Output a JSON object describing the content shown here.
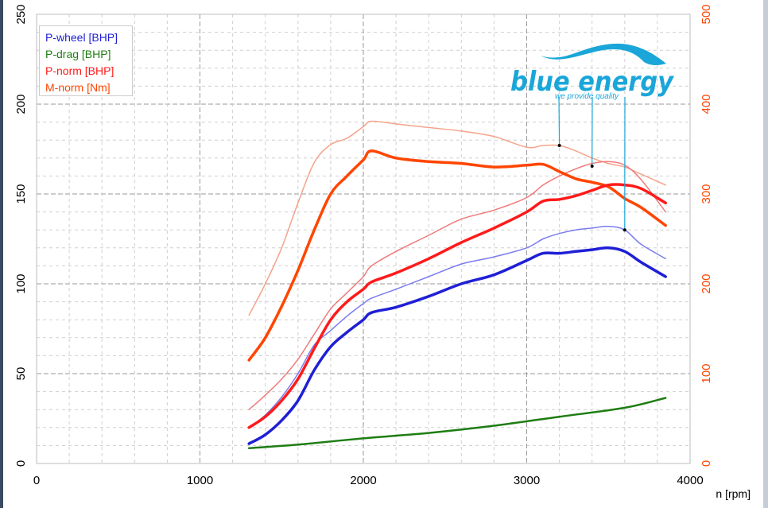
{
  "chart_data": {
    "type": "line",
    "xlabel": "n [rpm]",
    "xlim": [
      0,
      4000
    ],
    "xticks": [
      "0",
      "1000",
      "2000",
      "3000",
      "4000"
    ],
    "ylim_left": [
      0,
      250
    ],
    "yticks_left": [
      "0",
      "50",
      "100",
      "150",
      "200",
      "250"
    ],
    "ylim_right": [
      0,
      500
    ],
    "yticks_right": [
      "0",
      "100",
      "200",
      "300",
      "400",
      "500"
    ],
    "grid": true,
    "legend_placement": "top-left",
    "series": [
      {
        "name": "P-wheel [BHP]",
        "axis": "left",
        "color": "#1f1fd6",
        "width": 3.5,
        "points": [
          [
            1300,
            11
          ],
          [
            1400,
            16
          ],
          [
            1500,
            24
          ],
          [
            1600,
            35
          ],
          [
            1700,
            52
          ],
          [
            1800,
            65
          ],
          [
            1900,
            73
          ],
          [
            2000,
            80
          ],
          [
            2050,
            84
          ],
          [
            2200,
            87
          ],
          [
            2400,
            93
          ],
          [
            2600,
            100
          ],
          [
            2800,
            105
          ],
          [
            3000,
            113
          ],
          [
            3100,
            117
          ],
          [
            3200,
            117
          ],
          [
            3300,
            118
          ],
          [
            3400,
            119
          ],
          [
            3500,
            120
          ],
          [
            3600,
            118
          ],
          [
            3700,
            112
          ],
          [
            3850,
            104
          ]
        ]
      },
      {
        "name": "P-drag [BHP]",
        "axis": "left",
        "color": "#1e7d12",
        "width": 2.5,
        "points": [
          [
            1300,
            8.5
          ],
          [
            1600,
            10.5
          ],
          [
            2000,
            14
          ],
          [
            2400,
            17
          ],
          [
            2800,
            21
          ],
          [
            3200,
            26
          ],
          [
            3600,
            31
          ],
          [
            3850,
            36.5
          ]
        ]
      },
      {
        "name": "P-norm [BHP]",
        "axis": "left",
        "color": "#ff1a1a",
        "width": 3.5,
        "points": [
          [
            1300,
            20
          ],
          [
            1400,
            26
          ],
          [
            1500,
            35
          ],
          [
            1600,
            47
          ],
          [
            1700,
            64
          ],
          [
            1800,
            80
          ],
          [
            1900,
            90
          ],
          [
            2000,
            97
          ],
          [
            2050,
            101
          ],
          [
            2200,
            106
          ],
          [
            2400,
            114
          ],
          [
            2600,
            123
          ],
          [
            2800,
            131
          ],
          [
            3000,
            140
          ],
          [
            3100,
            146
          ],
          [
            3200,
            147
          ],
          [
            3300,
            149
          ],
          [
            3400,
            152
          ],
          [
            3500,
            155
          ],
          [
            3600,
            155
          ],
          [
            3700,
            153
          ],
          [
            3850,
            145
          ]
        ]
      },
      {
        "name": "M-norm [Nm]",
        "axis": "right",
        "color": "#ff4500",
        "width": 3.5,
        "points": [
          [
            1300,
            115
          ],
          [
            1400,
            140
          ],
          [
            1500,
            175
          ],
          [
            1600,
            215
          ],
          [
            1700,
            260
          ],
          [
            1800,
            300
          ],
          [
            1900,
            320
          ],
          [
            2000,
            338
          ],
          [
            2050,
            348
          ],
          [
            2200,
            340
          ],
          [
            2400,
            336
          ],
          [
            2600,
            334
          ],
          [
            2800,
            330
          ],
          [
            3000,
            332
          ],
          [
            3100,
            333
          ],
          [
            3200,
            325
          ],
          [
            3300,
            317
          ],
          [
            3400,
            313
          ],
          [
            3500,
            308
          ],
          [
            3600,
            295
          ],
          [
            3700,
            285
          ],
          [
            3850,
            265
          ]
        ]
      },
      {
        "name": "",
        "axis": "left",
        "color": "#7c7cf0",
        "width": 1.5,
        "points": [
          [
            1300,
            20
          ],
          [
            1400,
            27
          ],
          [
            1500,
            37
          ],
          [
            1600,
            50
          ],
          [
            1700,
            66
          ],
          [
            1800,
            74
          ],
          [
            1900,
            82
          ],
          [
            2000,
            89
          ],
          [
            2050,
            92
          ],
          [
            2200,
            97
          ],
          [
            2400,
            104
          ],
          [
            2600,
            111
          ],
          [
            2800,
            115
          ],
          [
            3000,
            120
          ],
          [
            3100,
            125
          ],
          [
            3200,
            128
          ],
          [
            3300,
            130
          ],
          [
            3400,
            131
          ],
          [
            3500,
            132
          ],
          [
            3600,
            130
          ],
          [
            3700,
            122
          ],
          [
            3850,
            114
          ]
        ]
      },
      {
        "name": "",
        "axis": "left",
        "color": "#f07a7a",
        "width": 1.5,
        "points": [
          [
            1300,
            30
          ],
          [
            1400,
            38
          ],
          [
            1500,
            47
          ],
          [
            1600,
            58
          ],
          [
            1700,
            72
          ],
          [
            1800,
            86
          ],
          [
            1900,
            95
          ],
          [
            2000,
            104
          ],
          [
            2050,
            110
          ],
          [
            2200,
            118
          ],
          [
            2400,
            127
          ],
          [
            2600,
            136
          ],
          [
            2800,
            141
          ],
          [
            3000,
            148
          ],
          [
            3100,
            155
          ],
          [
            3200,
            160
          ],
          [
            3300,
            164
          ],
          [
            3400,
            167
          ],
          [
            3500,
            168
          ],
          [
            3600,
            166
          ],
          [
            3700,
            158
          ],
          [
            3850,
            140
          ]
        ]
      },
      {
        "name": "",
        "axis": "right",
        "color": "#f5a38a",
        "width": 1.5,
        "points": [
          [
            1300,
            165
          ],
          [
            1400,
            200
          ],
          [
            1500,
            240
          ],
          [
            1600,
            290
          ],
          [
            1700,
            335
          ],
          [
            1800,
            355
          ],
          [
            1900,
            362
          ],
          [
            2000,
            375
          ],
          [
            2050,
            381
          ],
          [
            2200,
            378
          ],
          [
            2400,
            374
          ],
          [
            2600,
            370
          ],
          [
            2800,
            364
          ],
          [
            3000,
            352
          ],
          [
            3100,
            354
          ],
          [
            3200,
            354
          ],
          [
            3300,
            348
          ],
          [
            3400,
            340
          ],
          [
            3500,
            334
          ],
          [
            3600,
            330
          ],
          [
            3700,
            322
          ],
          [
            3850,
            310
          ]
        ]
      }
    ],
    "annotations": [
      {
        "axis": "right",
        "x": 3200,
        "y": 354
      },
      {
        "axis": "right",
        "x": 3400,
        "y": 331
      },
      {
        "axis": "left",
        "x": 3600,
        "y": 130
      }
    ]
  },
  "logo": {
    "text": "blue energy",
    "tagline": "we provide quality",
    "color": "#1aa6d9"
  }
}
